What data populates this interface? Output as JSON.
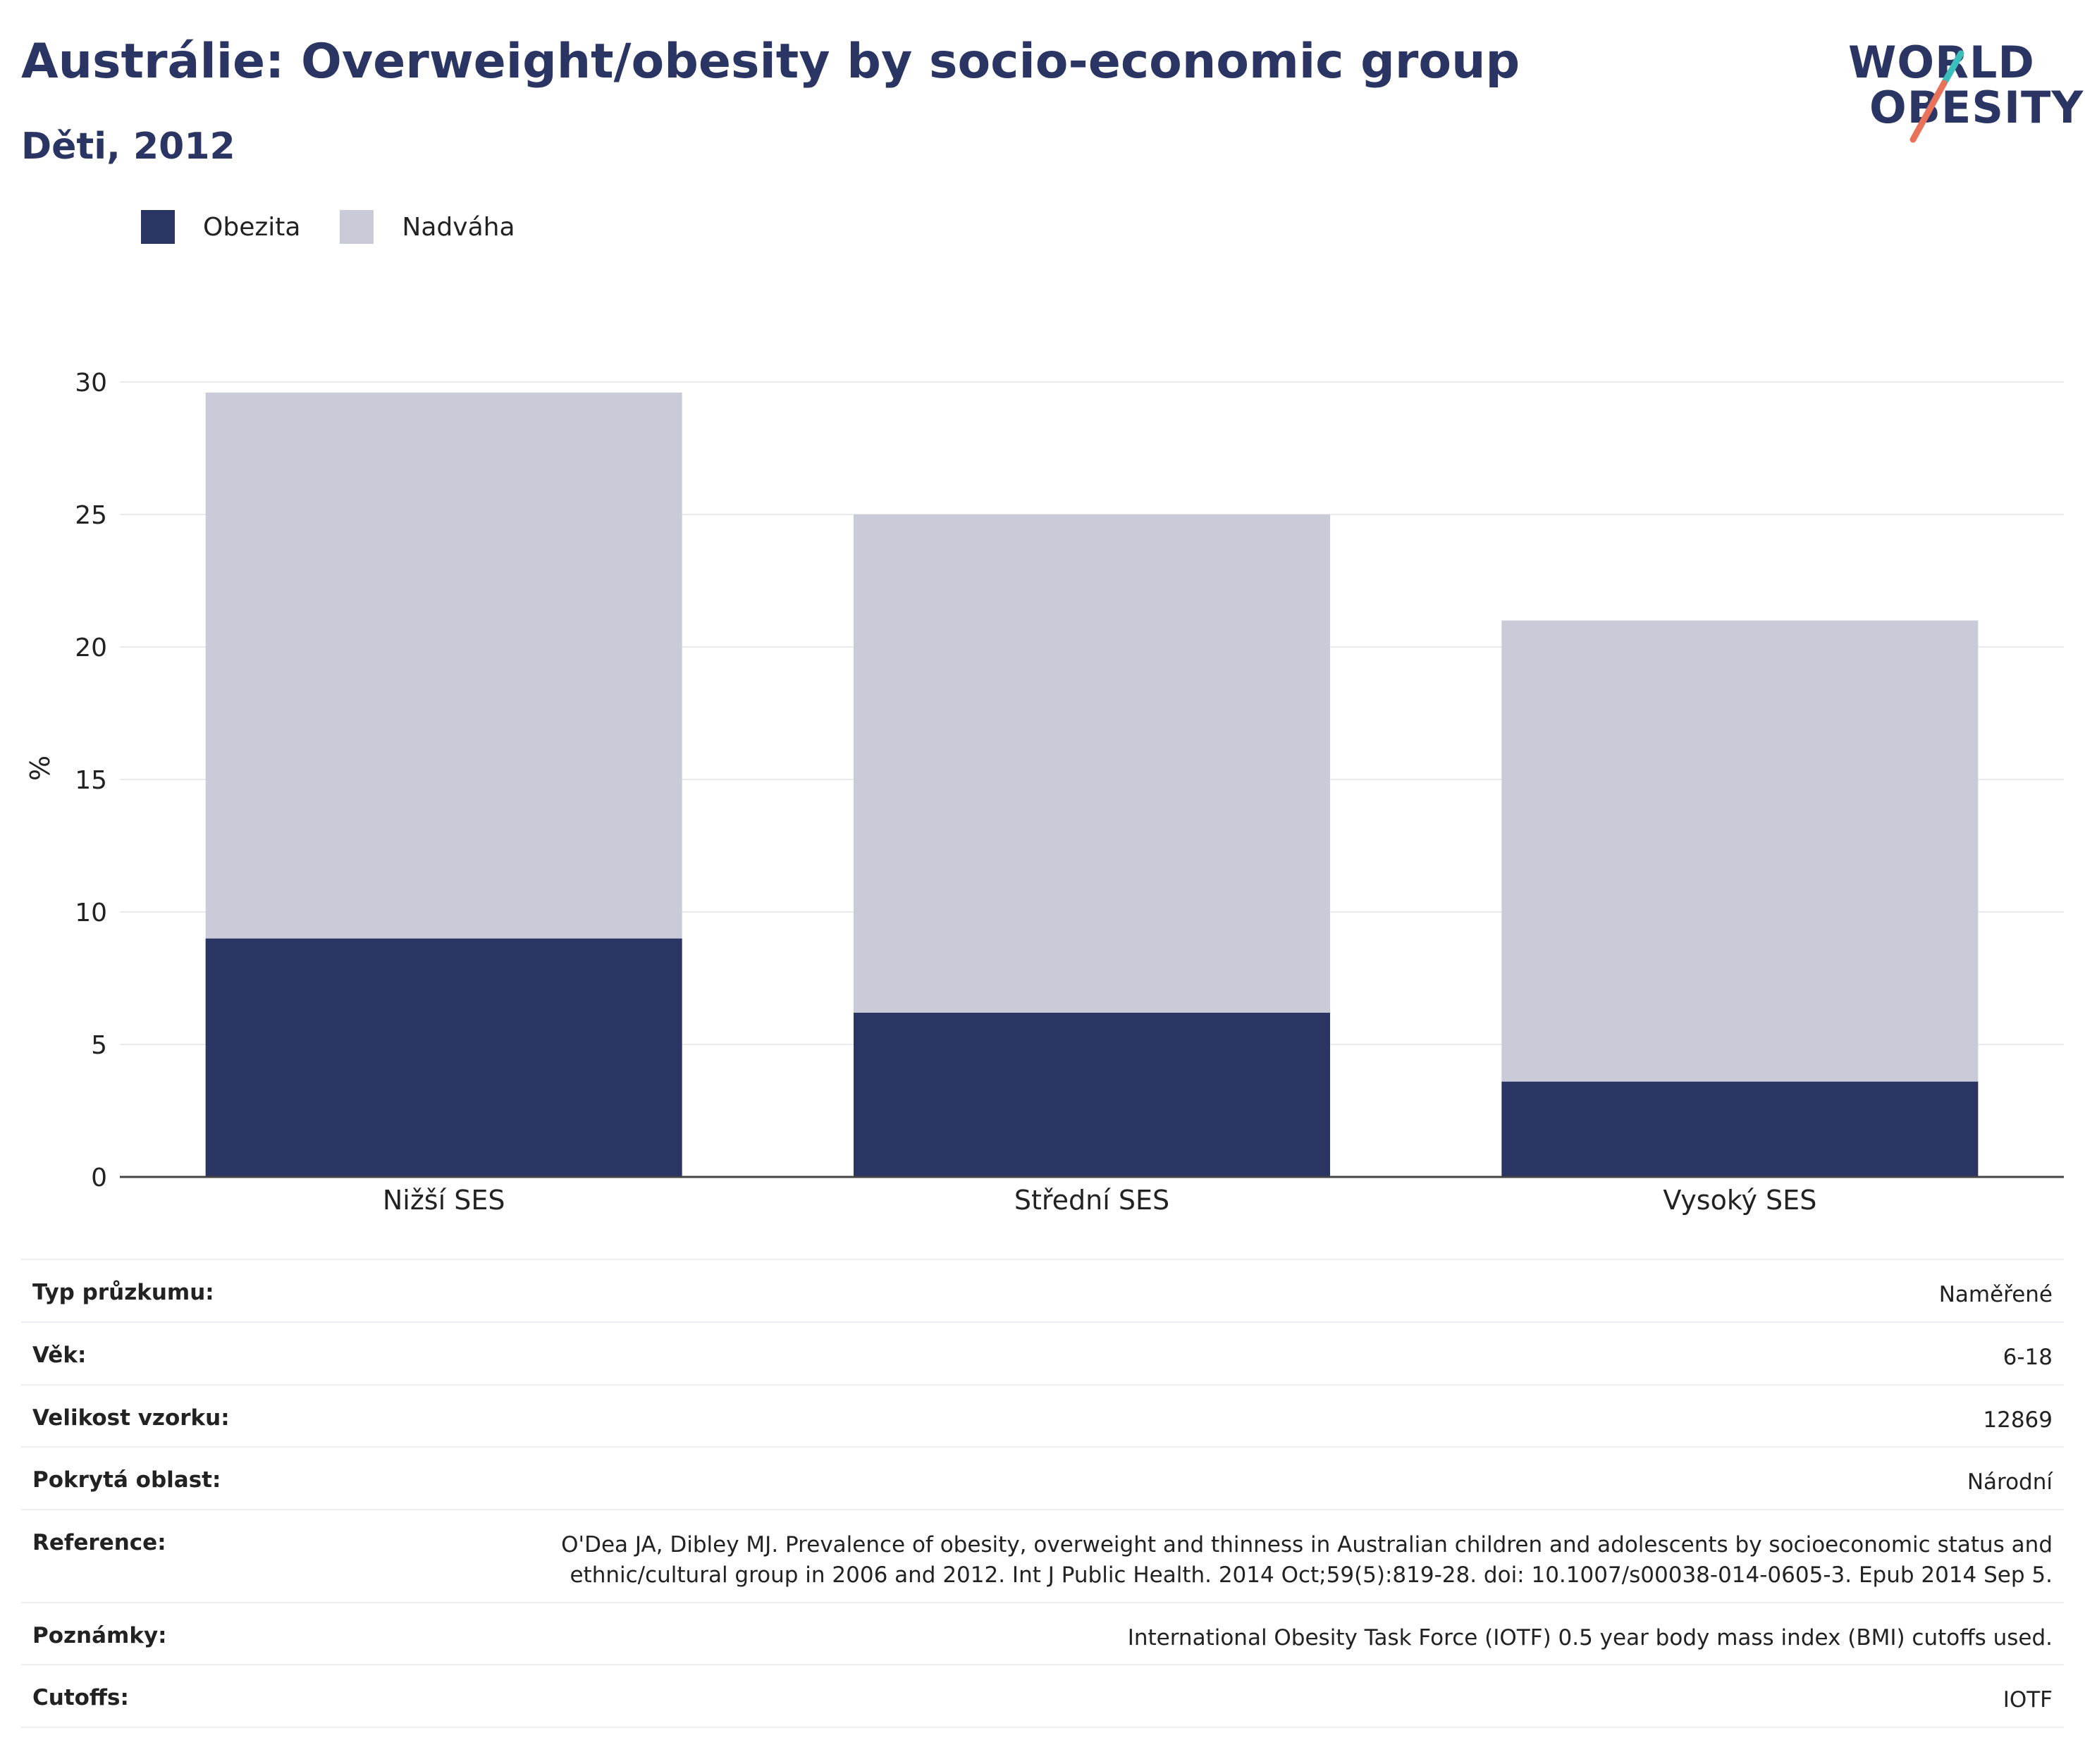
{
  "header": {
    "title": "Austrálie: Overweight/obesity by socio-economic group",
    "subtitle": "Děti, 2012"
  },
  "logo": {
    "line1": "WORLD",
    "line2": "OBESITY"
  },
  "colors": {
    "obezita": "#2a3564",
    "nadvaha": "#c9ccd8",
    "title": "#2a3564",
    "logo_teal": "#3bbfbd",
    "logo_coral": "#e8735a"
  },
  "chart_data": {
    "type": "bar",
    "stacked": true,
    "categories": [
      "Nižší SES",
      "Střední SES",
      "Vysoký SES"
    ],
    "series": [
      {
        "name": "Obezita",
        "values": [
          9.0,
          6.2,
          3.6
        ]
      },
      {
        "name": "Nadváha",
        "values": [
          20.6,
          18.8,
          17.4
        ]
      }
    ],
    "ylabel": "%",
    "ylim": [
      0,
      30
    ],
    "yticks": [
      0,
      5,
      10,
      15,
      20,
      25,
      30
    ],
    "grid": true,
    "legend": "top-left"
  },
  "details": [
    {
      "label": "Typ průzkumu:",
      "value": "Naměřené"
    },
    {
      "label": "Věk:",
      "value": "6-18"
    },
    {
      "label": "Velikost vzorku:",
      "value": "12869"
    },
    {
      "label": "Pokrytá oblast:",
      "value": "Národní"
    },
    {
      "label": "Reference:",
      "value": "O'Dea JA, Dibley MJ. Prevalence of obesity, overweight and thinness in Australian children and adolescents by socioeconomic status and ethnic/cultural group in 2006 and 2012. Int J Public Health. 2014 Oct;59(5):819-28. doi: 10.1007/s00038-014-0605-3. Epub 2014 Sep 5."
    },
    {
      "label": "Poznámky:",
      "value": "International Obesity Task Force (IOTF) 0.5 year body mass index (BMI) cutoffs used."
    },
    {
      "label": "Cutoffs:",
      "value": "IOTF"
    }
  ]
}
